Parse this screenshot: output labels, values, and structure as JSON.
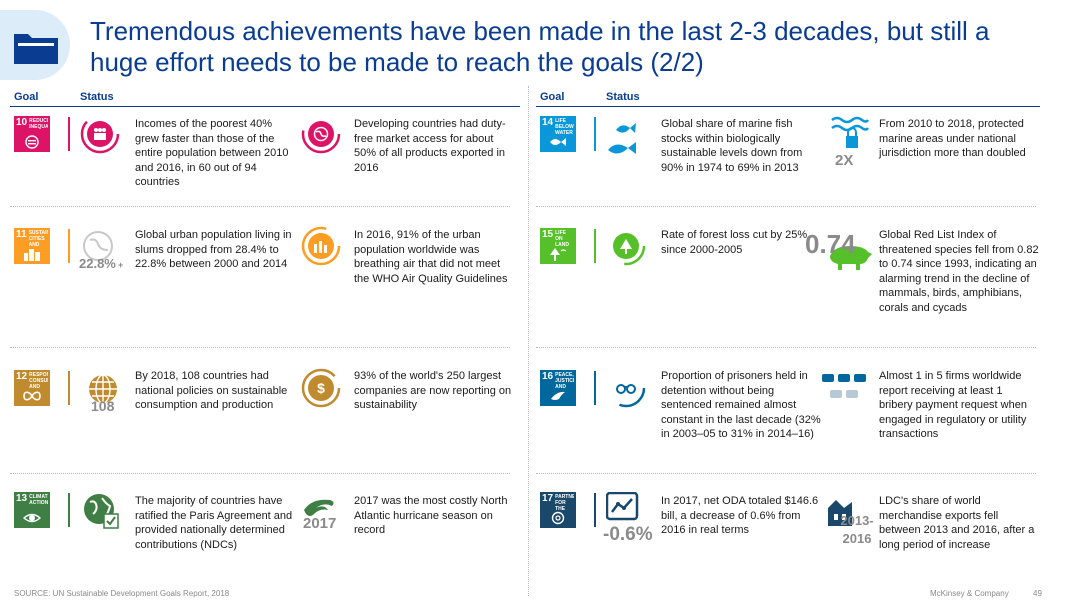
{
  "title": "Tremendous achievements have been made in the last 2-3 decades, but still a huge effort needs to be made to reach the goals (2/2)",
  "headers": {
    "goal": "Goal",
    "status": "Status"
  },
  "colors": {
    "title": "#0a3d91",
    "sdg10": "#dd1367",
    "sdg11": "#fd9d24",
    "sdg12": "#bf8b2e",
    "sdg13": "#3f7e44",
    "sdg14": "#0a97d9",
    "sdg15": "#56c02b",
    "sdg16": "#00689d",
    "sdg17": "#19486a"
  },
  "goals": {
    "g10": {
      "number": "10",
      "label": "REDUCED INEQUALITIES",
      "icon": "inequality-icon"
    },
    "g11": {
      "number": "11",
      "label": "SUSTAINABLE CITIES AND COMMUNITIES",
      "icon": "city-icon"
    },
    "g12": {
      "number": "12",
      "label": "RESPONSIBLE CONSUMPTION AND PRODUCTION",
      "icon": "infinity-icon"
    },
    "g13": {
      "number": "13",
      "label": "CLIMATE ACTION",
      "icon": "eye-globe-icon"
    },
    "g14": {
      "number": "14",
      "label": "LIFE BELOW WATER",
      "icon": "fish-icon"
    },
    "g15": {
      "number": "15",
      "label": "LIFE ON LAND",
      "icon": "tree-bird-icon"
    },
    "g16": {
      "number": "16",
      "label": "PEACE, JUSTICE AND STRONG INSTITUTIONS",
      "icon": "dove-icon"
    },
    "g17": {
      "number": "17",
      "label": "PARTNERSHIPS FOR THE GOALS",
      "icon": "rings-icon"
    }
  },
  "rows": {
    "r10a": "Incomes of the poorest 40% grew faster than those of the entire population between 2010 and 2016, in 60 out of 94 countries",
    "r10b": "Developing countries had duty-free market access for about 50% of all products exported in 2016",
    "r11a": "Global urban population living in slums dropped from 28.4% to 22.8% between 2000 and 2014",
    "r11b": "In 2016, 91% of the urban population worldwide was breathing air that did not meet the WHO Air Quality Guidelines",
    "r12a": "By 2018, 108 countries had national policies on sustainable consumption and production",
    "r12b": "93% of the world's 250 largest companies are now reporting on sustainability",
    "r13a": "The majority of countries have ratified the Paris Agreement and provided nationally determined contributions (NDCs)",
    "r13b": "2017 was the most costly North Atlantic hurricane season on record",
    "r14a": "Global share of marine fish stocks within biologically sustainable levels down from 90% in 1974 to 69% in 2013",
    "r14b": "From 2010 to 2018, protected marine areas under national jurisdiction more than doubled",
    "r15a": "Rate of forest loss cut by 25% since 2000-2005",
    "r15b": "Global Red List Index of threatened species fell from 0.82 to 0.74 since 1993, indicating an alarming trend in the decline of mammals, birds, amphibians, corals and cycads",
    "r16a": "Proportion of prisoners held in detention without being sentenced remained almost constant in the last decade (32% in 2003–05 to 31% in 2014–16)",
    "r16b": "Almost 1 in 5 firms worldwide report receiving at least 1 bribery payment request when engaged in regulatory or utility transactions",
    "r17a": "In 2017, net ODA totaled $146.6 bill, a decrease of 0.6% from 2016 in real terms",
    "r17b": "LDC's share of world merchandise exports fell between 2013 and 2016, after a long period of increase"
  },
  "overlays": {
    "slum": "22.8%",
    "slum_arrow": "+",
    "policies": "108",
    "year": "2017",
    "marine": "2X",
    "redlist": "0.74",
    "oda": "-0.6%",
    "ldc": "2013-2016"
  },
  "status_icons": {
    "s10a": "people-icon",
    "s10b": "globe-trade-icon",
    "s11a": "globe-icon",
    "s11b": "factory-icon",
    "s12a": "globe-grid-icon",
    "s12b": "money-plant-icon",
    "s13a": "globe-check-icon",
    "s13b": "hurricane-icon",
    "s14a": "fish-icon",
    "s14b": "waves-lock-icon",
    "s15a": "tree-icon",
    "s15b": "boar-icon",
    "s16a": "handcuffs-icon",
    "s16b": "money-hands-icon",
    "s17a": "chart-trend-icon",
    "s17b": "factory-export-icon"
  },
  "footer": {
    "source": "SOURCE: UN Sustainable Development Goals Report, 2018",
    "company": "McKinsey & Company",
    "page": "49"
  }
}
